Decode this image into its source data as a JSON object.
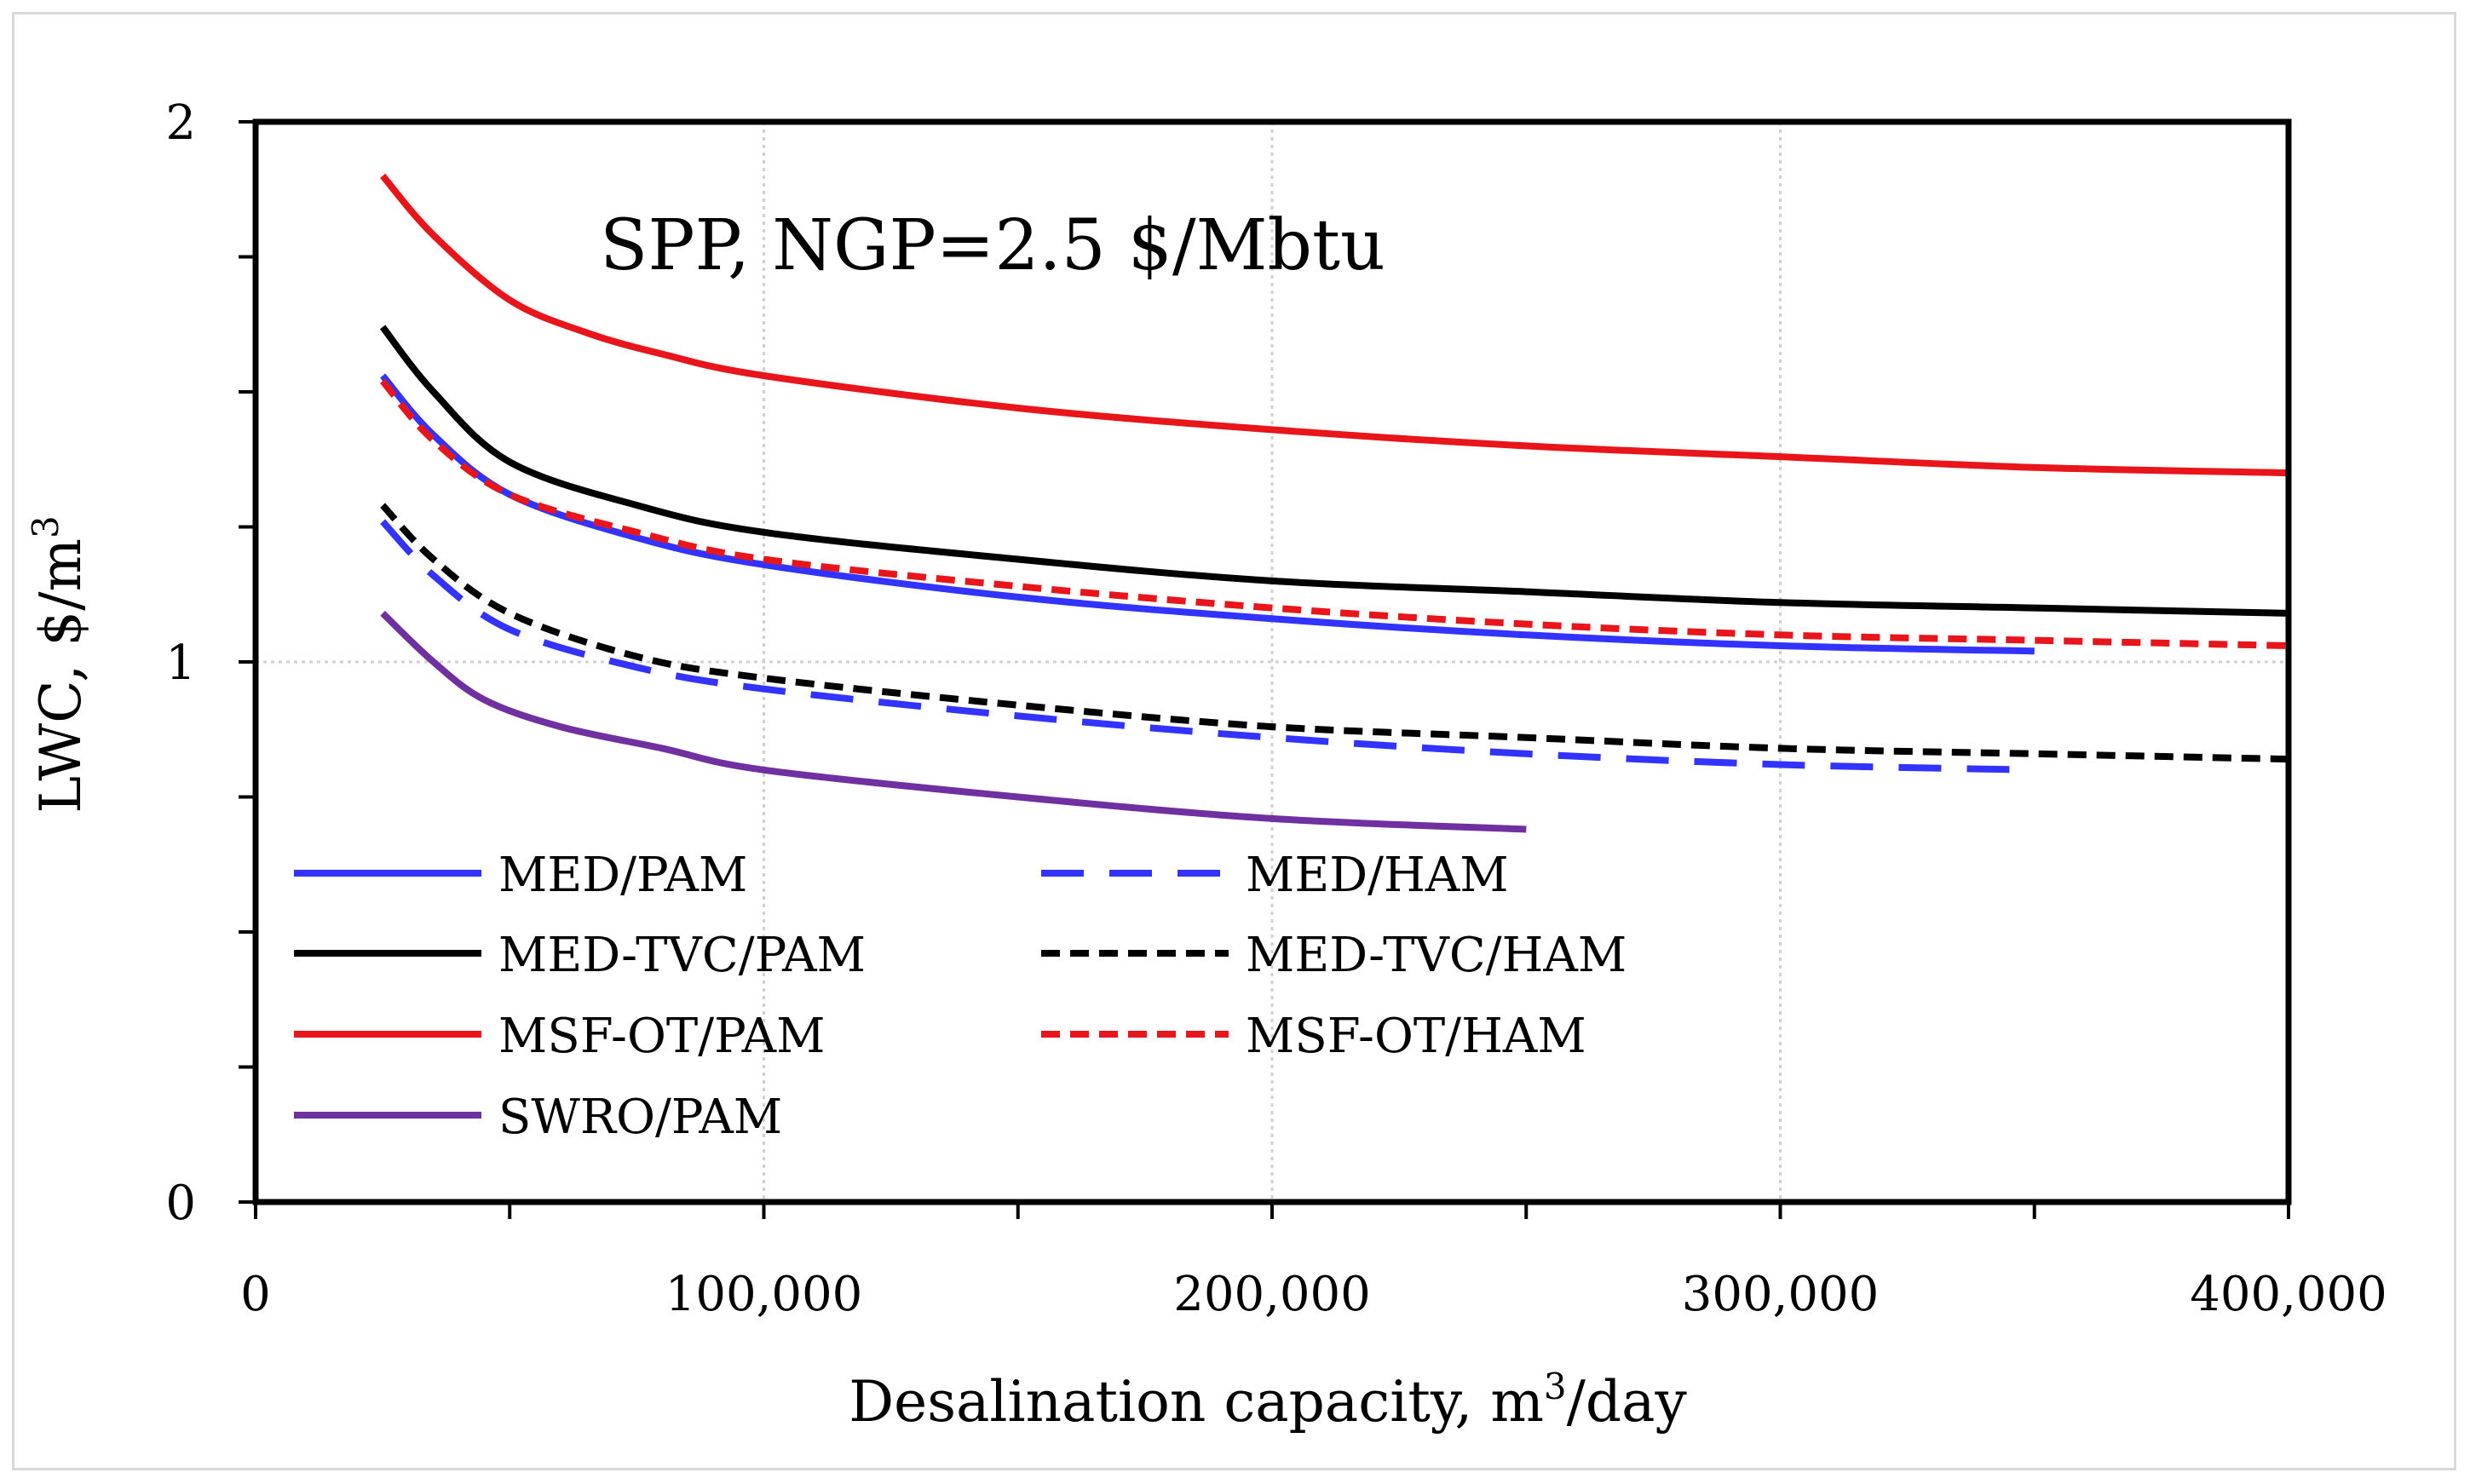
{
  "chart_data": {
    "type": "line",
    "title": "SPP, NGP=2.5 $/Mbtu",
    "xlabel_main": "Desalination capacity, m",
    "xlabel_sup": "3",
    "xlabel_tail": "/day",
    "ylabel_main": "LWC, $/m",
    "ylabel_sup": "3",
    "xlim": [
      0,
      400000
    ],
    "ylim": [
      0,
      2
    ],
    "x_ticks": [
      0,
      100000,
      200000,
      300000,
      400000
    ],
    "x_tick_labels": [
      "0",
      "100,000",
      "200,000",
      "300,000",
      "400,000"
    ],
    "y_ticks": [
      0,
      1,
      2
    ],
    "y_tick_labels": [
      "0",
      "1",
      "2"
    ],
    "y_minor_step": 0.25,
    "x_minor_step": 50000,
    "grid": true,
    "legend_position": "bottom-left",
    "series": [
      {
        "name": "MED/PAM",
        "color": "#3333ff",
        "dash": "solid",
        "x": [
          25000,
          35000,
          50000,
          75000,
          100000,
          150000,
          200000,
          250000,
          300000,
          350000
        ],
        "y": [
          1.53,
          1.42,
          1.31,
          1.23,
          1.18,
          1.12,
          1.08,
          1.05,
          1.03,
          1.02
        ]
      },
      {
        "name": "MED/HAM",
        "color": "#3333ff",
        "dash": "dashed",
        "x": [
          25000,
          35000,
          50000,
          75000,
          100000,
          150000,
          200000,
          250000,
          300000,
          350000
        ],
        "y": [
          1.26,
          1.16,
          1.06,
          0.99,
          0.95,
          0.9,
          0.86,
          0.83,
          0.81,
          0.8
        ]
      },
      {
        "name": "MED-TVC/PAM",
        "color": "#000000",
        "dash": "solid",
        "x": [
          25000,
          35000,
          50000,
          75000,
          100000,
          150000,
          200000,
          250000,
          300000,
          350000,
          400000
        ],
        "y": [
          1.62,
          1.5,
          1.37,
          1.29,
          1.24,
          1.19,
          1.15,
          1.13,
          1.11,
          1.1,
          1.09
        ]
      },
      {
        "name": "MED-TVC/HAM",
        "color": "#000000",
        "dash": "dotted",
        "x": [
          25000,
          35000,
          50000,
          75000,
          100000,
          150000,
          200000,
          250000,
          300000,
          350000,
          400000
        ],
        "y": [
          1.29,
          1.19,
          1.09,
          1.01,
          0.97,
          0.92,
          0.88,
          0.86,
          0.84,
          0.83,
          0.82
        ]
      },
      {
        "name": "MSF-OT/PAM",
        "color": "#e8161b",
        "dash": "solid",
        "x": [
          25000,
          35000,
          50000,
          65000,
          80000,
          100000,
          150000,
          200000,
          250000,
          300000,
          350000,
          400000
        ],
        "y": [
          1.9,
          1.79,
          1.67,
          1.61,
          1.57,
          1.53,
          1.47,
          1.43,
          1.4,
          1.38,
          1.36,
          1.35
        ]
      },
      {
        "name": "MSF-OT/HAM",
        "color": "#e8161b",
        "dash": "dotted",
        "x": [
          25000,
          35000,
          50000,
          75000,
          100000,
          150000,
          200000,
          250000,
          300000,
          350000,
          400000
        ],
        "y": [
          1.52,
          1.41,
          1.31,
          1.24,
          1.19,
          1.14,
          1.1,
          1.07,
          1.05,
          1.04,
          1.03
        ]
      },
      {
        "name": "SWRO/PAM",
        "color": "#7030a0",
        "dash": "solid",
        "x": [
          25000,
          35000,
          45000,
          60000,
          80000,
          100000,
          150000,
          200000,
          250000
        ],
        "y": [
          1.09,
          1.0,
          0.93,
          0.88,
          0.84,
          0.8,
          0.75,
          0.71,
          0.69
        ]
      }
    ]
  }
}
